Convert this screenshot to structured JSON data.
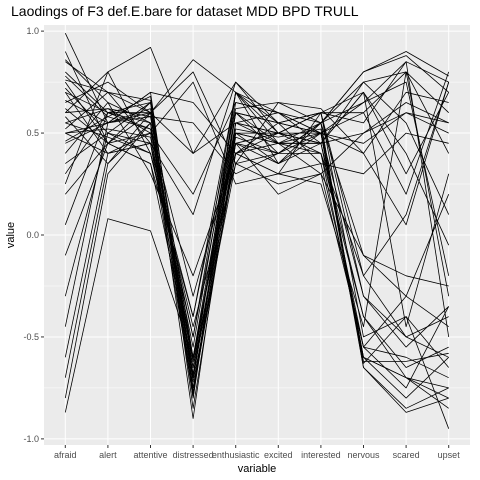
{
  "chart_data": {
    "type": "line",
    "title": "Laodings of F3 def.E.bare for dataset MDD BPD TRULL",
    "xlabel": "variable",
    "ylabel": "value",
    "categories": [
      "afraid",
      "alert",
      "attentive",
      "distressed",
      "enthusiastic",
      "excited",
      "interested",
      "nervous",
      "scared",
      "upset"
    ],
    "ylim": [
      -1.03,
      1.03
    ],
    "yticks": [
      1.0,
      0.5,
      0.0,
      -0.5,
      -1.0
    ],
    "ytick_labels": [
      "1.0",
      "0.5",
      "0.0",
      "-0.5",
      "-1.0"
    ],
    "grid": true,
    "background": "#ebebeb",
    "grid_color": "#ffffff",
    "line_color": "#000000",
    "series": [
      {
        "values": [
          0.99,
          0.55,
          0.6,
          0.4,
          0.75,
          0.55,
          0.6,
          -0.2,
          0.1,
          0.75
        ]
      },
      {
        "values": [
          0.9,
          0.45,
          0.65,
          -0.6,
          0.6,
          0.4,
          0.55,
          -0.65,
          -0.87,
          -0.8
        ]
      },
      {
        "values": [
          0.86,
          0.65,
          0.55,
          -0.8,
          0.55,
          0.45,
          0.5,
          -0.6,
          -0.8,
          -0.6
        ]
      },
      {
        "values": [
          0.8,
          0.6,
          0.6,
          -0.7,
          0.5,
          0.5,
          0.45,
          -0.4,
          -0.7,
          -0.75
        ]
      },
      {
        "values": [
          0.76,
          0.7,
          0.66,
          -0.85,
          0.45,
          0.35,
          0.55,
          0.8,
          0.9,
          0.78
        ]
      },
      {
        "values": [
          0.72,
          0.5,
          0.45,
          -0.5,
          0.7,
          0.55,
          0.6,
          -0.3,
          -0.5,
          -0.4
        ]
      },
      {
        "values": [
          0.7,
          0.4,
          0.5,
          0.2,
          0.65,
          0.6,
          0.45,
          0.7,
          0.3,
          0.7
        ]
      },
      {
        "values": [
          0.66,
          0.55,
          0.7,
          -0.75,
          0.4,
          0.3,
          0.35,
          -0.55,
          -0.6,
          -0.7
        ]
      },
      {
        "values": [
          0.62,
          0.45,
          0.35,
          -0.65,
          0.6,
          0.55,
          0.5,
          0.6,
          0.8,
          0.4
        ]
      },
      {
        "values": [
          0.6,
          0.62,
          0.58,
          0.55,
          0.3,
          0.4,
          0.55,
          -0.1,
          -0.3,
          0.2
        ]
      },
      {
        "values": [
          0.58,
          0.35,
          0.55,
          -0.9,
          0.55,
          0.5,
          0.6,
          0.55,
          0.85,
          0.75
        ]
      },
      {
        "values": [
          0.55,
          0.48,
          0.4,
          -0.4,
          0.7,
          0.45,
          0.4,
          -0.6,
          -0.7,
          -0.85
        ]
      },
      {
        "values": [
          0.52,
          0.7,
          0.6,
          0.8,
          0.35,
          0.25,
          0.3,
          0.5,
          0.6,
          0.5
        ]
      },
      {
        "values": [
          0.5,
          0.55,
          0.62,
          -0.7,
          0.48,
          0.4,
          0.55,
          -0.63,
          -0.4,
          -0.95
        ]
      },
      {
        "values": [
          0.5,
          0.4,
          0.45,
          -0.55,
          0.65,
          0.6,
          0.5,
          0.4,
          0.7,
          0.65
        ]
      },
      {
        "values": [
          0.46,
          0.58,
          0.52,
          -0.6,
          0.5,
          0.45,
          0.45,
          0.75,
          0.8,
          0.6
        ]
      },
      {
        "values": [
          0.4,
          0.65,
          0.3,
          -0.2,
          0.4,
          0.55,
          0.5,
          -0.3,
          -0.55,
          -0.35
        ]
      },
      {
        "values": [
          0.35,
          0.5,
          0.65,
          -0.8,
          0.7,
          0.5,
          0.6,
          0.7,
          -0.45,
          0.3
        ]
      },
      {
        "values": [
          0.2,
          0.45,
          0.5,
          -0.75,
          0.45,
          0.4,
          0.4,
          -0.4,
          -0.65,
          -0.55
        ]
      },
      {
        "values": [
          0.05,
          0.6,
          0.55,
          -0.62,
          0.55,
          0.6,
          0.55,
          0.65,
          0.75,
          -0.2
        ]
      },
      {
        "values": [
          -0.1,
          0.45,
          0.6,
          -0.7,
          0.5,
          0.35,
          0.5,
          -0.6,
          -0.7,
          -0.8
        ]
      },
      {
        "values": [
          -0.3,
          0.5,
          0.4,
          -0.5,
          0.6,
          0.45,
          0.45,
          0.5,
          0.65,
          0.55
        ]
      },
      {
        "values": [
          -0.45,
          0.55,
          0.58,
          -0.65,
          0.4,
          0.5,
          0.6,
          -0.5,
          -0.4,
          -0.65
        ]
      },
      {
        "values": [
          -0.6,
          0.4,
          0.45,
          -0.78,
          0.6,
          0.55,
          0.35,
          0.3,
          0.5,
          0.45
        ]
      },
      {
        "values": [
          -0.7,
          0.35,
          0.6,
          -0.72,
          0.35,
          0.4,
          0.5,
          -0.65,
          -0.85,
          -0.75
        ]
      },
      {
        "values": [
          -0.8,
          0.3,
          0.55,
          -0.68,
          0.5,
          0.45,
          0.55,
          0.8,
          0.88,
          0.7
        ]
      },
      {
        "values": [
          -0.87,
          0.08,
          0.02,
          -0.6,
          0.45,
          0.5,
          0.4,
          -0.2,
          -0.5,
          -0.6
        ]
      },
      {
        "values": [
          0.65,
          0.75,
          0.6,
          0.86,
          0.7,
          0.35,
          0.45,
          -0.55,
          -0.3,
          -0.45
        ]
      },
      {
        "values": [
          0.55,
          0.62,
          0.5,
          0.75,
          0.25,
          0.3,
          0.6,
          0.6,
          0.2,
          0.8
        ]
      },
      {
        "values": [
          0.45,
          0.55,
          0.7,
          0.65,
          0.4,
          0.3,
          0.25,
          -0.45,
          0.8,
          -0.3
        ]
      },
      {
        "values": [
          0.6,
          0.8,
          0.92,
          0.4,
          0.55,
          0.5,
          0.45,
          0.7,
          0.4,
          -0.05
        ]
      },
      {
        "values": [
          0.75,
          0.45,
          0.35,
          -0.4,
          0.62,
          0.65,
          0.55,
          0.75,
          0.55,
          0.1
        ]
      },
      {
        "values": [
          0.85,
          0.7,
          0.45,
          0.1,
          0.75,
          0.5,
          0.5,
          0.45,
          0.6,
          0.55
        ]
      },
      {
        "values": [
          0.3,
          0.6,
          0.52,
          -0.3,
          0.45,
          0.2,
          0.3,
          -0.1,
          -0.2,
          -0.25
        ]
      },
      {
        "values": [
          0.5,
          0.52,
          0.48,
          -0.62,
          0.52,
          0.48,
          0.52,
          -0.62,
          -0.62,
          -0.58
        ]
      },
      {
        "values": [
          0.7,
          0.6,
          0.65,
          -0.77,
          0.4,
          0.45,
          0.3,
          -0.55,
          -0.75,
          -0.35
        ]
      },
      {
        "values": [
          0.25,
          0.8,
          0.4,
          -0.45,
          0.35,
          0.65,
          0.62,
          0.4,
          0.05,
          0.75
        ]
      },
      {
        "values": [
          0.78,
          0.58,
          0.68,
          -0.7,
          0.7,
          0.6,
          0.5,
          0.65,
          0.85,
          -0.5
        ]
      }
    ]
  }
}
